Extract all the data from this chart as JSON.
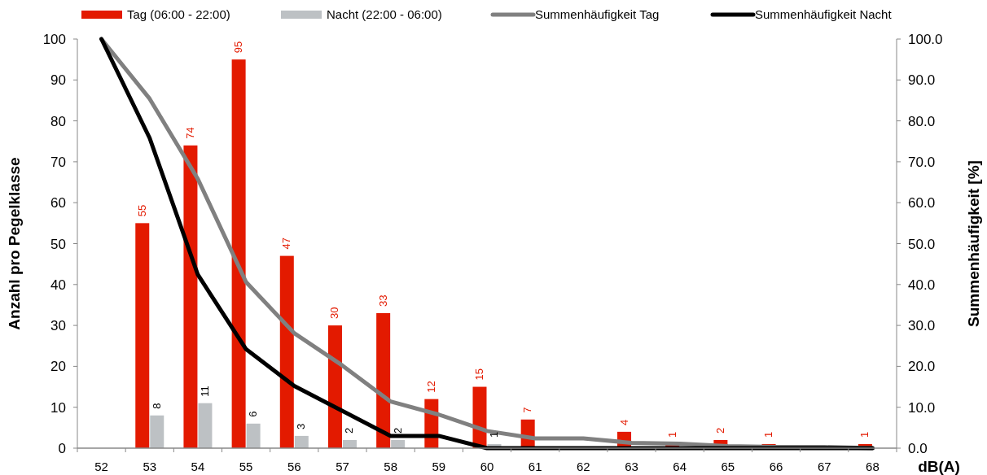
{
  "chart_data": {
    "type": "bar",
    "xlabel": "dB(A)",
    "ylabel": "Anzahl pro Pegelklasse",
    "y2label": "Summenhäufigkeit [%]",
    "categories": [
      "52",
      "53",
      "54",
      "55",
      "56",
      "57",
      "58",
      "59",
      "60",
      "61",
      "62",
      "63",
      "64",
      "65",
      "66",
      "67",
      "68"
    ],
    "series": [
      {
        "name": "Tag (06:00 - 22:00)",
        "color": "#e31a00",
        "values": [
          0,
          55,
          74,
          95,
          47,
          30,
          33,
          12,
          15,
          7,
          0,
          4,
          1,
          2,
          1,
          0,
          1
        ],
        "value_labels": [
          null,
          "55",
          "74",
          "95",
          "47",
          "30",
          "33",
          "12",
          "15",
          "7",
          null,
          "4",
          "1",
          "2",
          "1",
          null,
          "1"
        ]
      },
      {
        "name": "Nacht (22:00 - 06:00)",
        "color": "#bdc1c4",
        "values": [
          0,
          8,
          11,
          6,
          3,
          2,
          2,
          0,
          1,
          0,
          0,
          0,
          0,
          0,
          0,
          0,
          0
        ],
        "value_labels": [
          null,
          "8",
          "11",
          "6",
          "3",
          "2",
          "2",
          null,
          "1",
          null,
          null,
          null,
          null,
          null,
          null,
          null,
          null
        ]
      },
      {
        "name": "Summenhäufigkeit Tag",
        "type": "line",
        "axis": "y2",
        "color": "#808080",
        "values": [
          100,
          85.4,
          65.8,
          40.6,
          28.1,
          20.2,
          11.4,
          8.2,
          4.2,
          2.4,
          2.4,
          1.3,
          1.1,
          0.5,
          0.3,
          0.3,
          0
        ]
      },
      {
        "name": "Summenhäufigkeit Nacht",
        "type": "line",
        "axis": "y2",
        "color": "#000000",
        "values": [
          100,
          75.8,
          42.4,
          24.2,
          15.2,
          9.1,
          3.0,
          3.0,
          0,
          0,
          0,
          0,
          0,
          0,
          0,
          0,
          0
        ]
      }
    ],
    "ylim": [
      0,
      100
    ],
    "yticks": [
      0,
      10,
      20,
      30,
      40,
      50,
      60,
      70,
      80,
      90,
      100
    ],
    "y2lim": [
      0,
      100
    ],
    "y2ticks": [
      {
        "value": 0,
        "label": "0.0"
      },
      {
        "value": 10,
        "label": "10.0"
      },
      {
        "value": 20,
        "label": "20.0"
      },
      {
        "value": 30,
        "label": "30.0"
      },
      {
        "value": 40,
        "label": "40.0"
      },
      {
        "value": 50,
        "label": "50.0"
      },
      {
        "value": 60,
        "label": "60.0"
      },
      {
        "value": 70,
        "label": "70.0"
      },
      {
        "value": 80,
        "label": "80.0"
      },
      {
        "value": 90,
        "label": "90.0"
      },
      {
        "value": 100,
        "label": "100.0"
      }
    ],
    "grid": false,
    "legend": "top",
    "marker": "none",
    "line_style": "solid"
  }
}
